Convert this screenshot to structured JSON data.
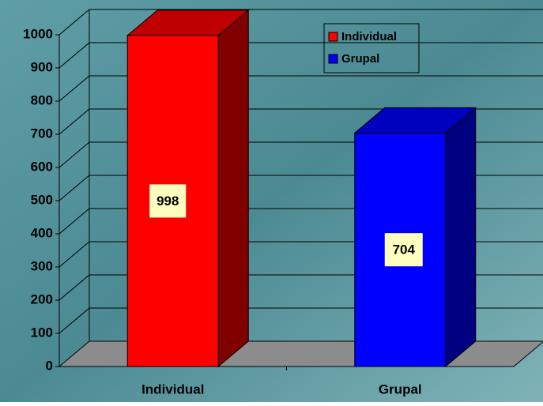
{
  "chart_data": {
    "type": "bar3d",
    "categories": [
      "Individual",
      "Grupal"
    ],
    "series": [
      {
        "name": "Individual",
        "color": "#ff0000",
        "values": [
          998,
          null
        ]
      },
      {
        "name": "Grupal",
        "color": "#0000ff",
        "values": [
          null,
          704
        ]
      }
    ],
    "ylim": [
      0,
      1000
    ],
    "yticks": [
      0,
      100,
      200,
      300,
      400,
      500,
      600,
      700,
      800,
      900,
      1000
    ],
    "grid": true,
    "legend": "top-right"
  }
}
